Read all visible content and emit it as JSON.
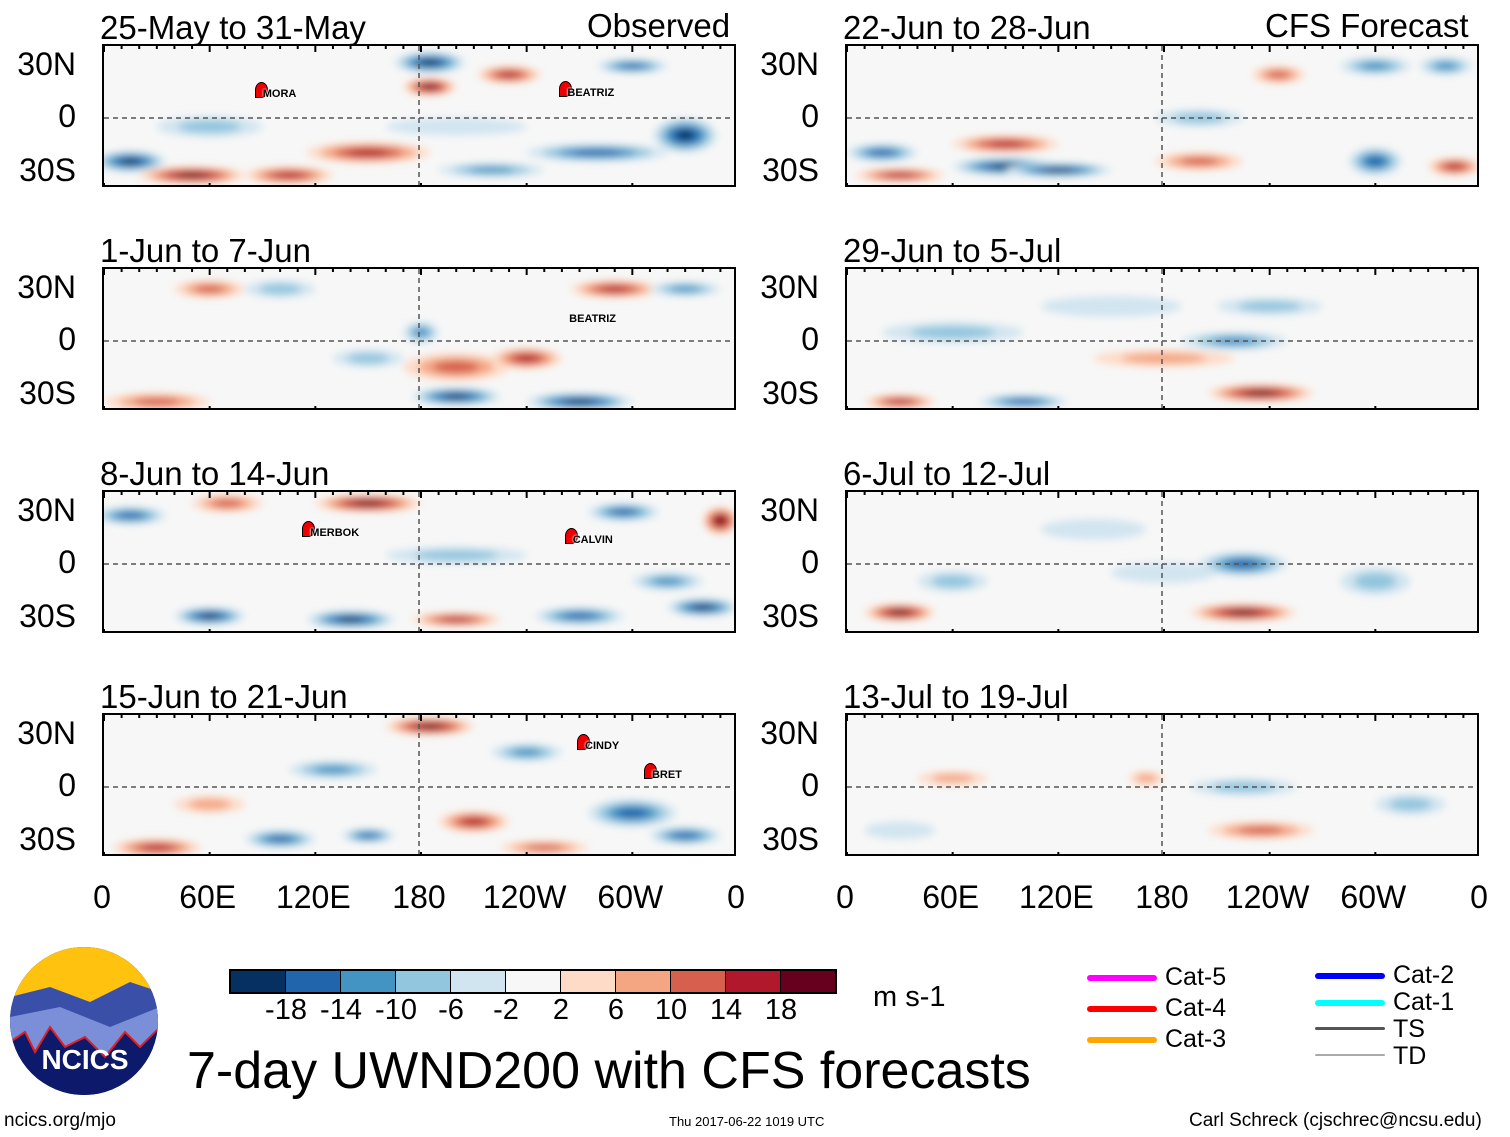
{
  "header": {
    "observed_label": "Observed",
    "forecast_label": "CFS Forecast"
  },
  "panels": [
    {
      "title": "25-May to 31-May",
      "column": "observed",
      "storms": [
        {
          "name": "MORA",
          "lon": 89,
          "lat": 16
        },
        {
          "name": "BEATRIZ",
          "lon": 262,
          "lat": 17
        }
      ]
    },
    {
      "title": "1-Jun to 7-Jun",
      "column": "observed",
      "storms": [
        {
          "name": "BEATRIZ",
          "lon": 263,
          "lat": 15,
          "label_only": true
        }
      ]
    },
    {
      "title": "8-Jun to 14-Jun",
      "column": "observed",
      "storms": [
        {
          "name": "MERBOK",
          "lon": 116,
          "lat": 20
        },
        {
          "name": "CALVIN",
          "lon": 265,
          "lat": 16
        }
      ]
    },
    {
      "title": "15-Jun to 21-Jun",
      "column": "observed",
      "storms": [
        {
          "name": "CINDY",
          "lon": 272,
          "lat": 26
        },
        {
          "name": "BRET",
          "lon": 310,
          "lat": 9
        }
      ]
    },
    {
      "title": "22-Jun to 28-Jun",
      "column": "forecast",
      "storms": []
    },
    {
      "title": "29-Jun to 5-Jul",
      "column": "forecast",
      "storms": []
    },
    {
      "title": "6-Jul to 12-Jul",
      "column": "forecast",
      "storms": []
    },
    {
      "title": "13-Jul to 19-Jul",
      "column": "forecast",
      "storms": []
    }
  ],
  "lat_labels": [
    "30N",
    "0",
    "30S"
  ],
  "lon_labels": [
    "0",
    "60E",
    "120E",
    "180",
    "120W",
    "60W",
    "0"
  ],
  "colorbar": {
    "colors": [
      "#053061",
      "#2166ac",
      "#4393c3",
      "#92c5de",
      "#d1e5f0",
      "#f7f7f7",
      "#fddbc7",
      "#f4a582",
      "#d6604d",
      "#b2182b",
      "#67001f"
    ],
    "tick_labels": [
      "-18",
      "-14",
      "-10",
      "-6",
      "-2",
      "2",
      "6",
      "10",
      "14",
      "18"
    ],
    "units": "m s-1"
  },
  "title": "7-day UWND200 with CFS forecasts",
  "logo_text": "NCICS",
  "legend": [
    {
      "label": "Cat-5",
      "color": "#ff00ff"
    },
    {
      "label": "Cat-4",
      "color": "#ff0000"
    },
    {
      "label": "Cat-3",
      "color": "#ffa500"
    },
    {
      "label": "Cat-2",
      "color": "#0000ff"
    },
    {
      "label": "Cat-1",
      "color": "#00ffff"
    },
    {
      "label": "TS",
      "color": "#555555"
    },
    {
      "label": "TD",
      "color": "#aaaaaa"
    }
  ],
  "footer": {
    "left": "ncics.org/mjo",
    "center": "Thu 2017-06-22 1019 UTC",
    "right": "Carl Schreck (cjschrec@ncsu.edu)"
  }
}
